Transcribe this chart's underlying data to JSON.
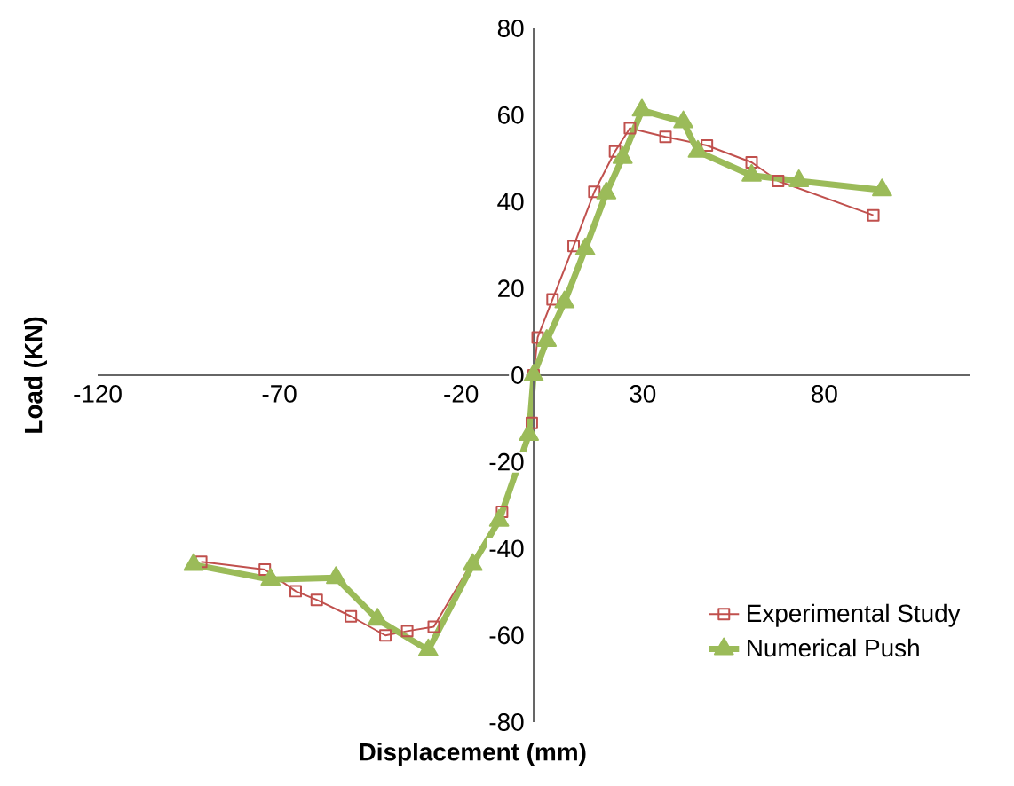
{
  "chart_data": {
    "type": "line",
    "xlabel": "Displacement (mm)",
    "ylabel": "Load (KN)",
    "xlim": [
      -120,
      120
    ],
    "xticks": [
      -120,
      -70,
      -20,
      30,
      80
    ],
    "ylim": [
      -80,
      80
    ],
    "yticks": [
      -80,
      -60,
      -40,
      -20,
      0,
      20,
      40,
      60,
      80
    ],
    "grid": false,
    "legend": "bottom right",
    "series": [
      {
        "name": "Experimental Study",
        "color": "#c0504d",
        "marker": "square",
        "x": [
          -91.5,
          -74,
          -65.5,
          -59.7,
          -50.3,
          -40.8,
          -34.8,
          -27.5,
          -8.7,
          -0.5,
          0,
          1.1,
          5.2,
          11,
          16.7,
          22.4,
          26.5,
          36.3,
          47.7,
          60,
          67.3,
          93.5
        ],
        "values": [
          -43,
          -44.8,
          -49.8,
          -51.8,
          -55.6,
          -60,
          -59,
          -58,
          -31.5,
          -11,
          0,
          8.7,
          17.5,
          29.8,
          42.3,
          51.6,
          57,
          55,
          53,
          49.1,
          44.8,
          36.9
        ]
      },
      {
        "name": "Numerical Push",
        "color": "#9bbb59",
        "marker": "triangle",
        "x": [
          -93.6,
          -72.4,
          -54.4,
          -43,
          -29,
          -16.8,
          -9.5,
          -1.3,
          0,
          3.6,
          8.5,
          14.2,
          20,
          24.5,
          29.8,
          41.2,
          45.2,
          60,
          73,
          95.9
        ],
        "values": [
          -43.7,
          -47.1,
          -46.7,
          -56.3,
          -63.4,
          -43.7,
          -33.5,
          -13.7,
          0,
          8,
          16.9,
          29.1,
          42,
          50.2,
          61.1,
          58.4,
          51.6,
          46.1,
          44.8,
          42.7
        ]
      }
    ]
  }
}
